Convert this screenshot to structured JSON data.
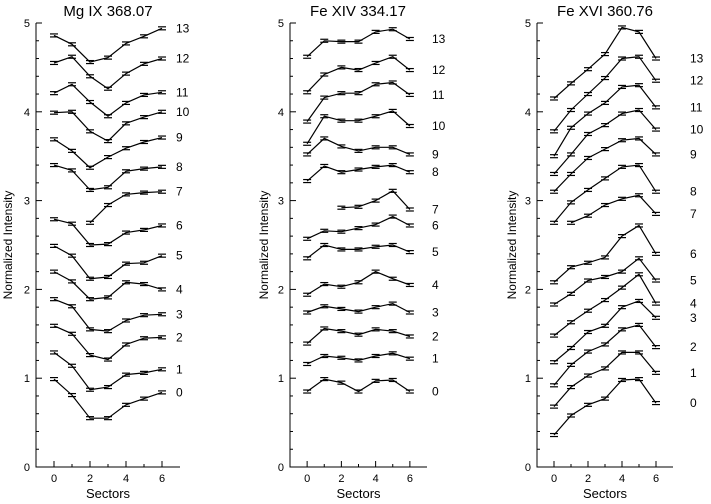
{
  "chart_data": [
    {
      "type": "line",
      "title": "Mg IX 368.07",
      "xlabel": "Sectors",
      "ylabel": "Normalized Intensity",
      "xlim": [
        -1,
        7
      ],
      "ylim": [
        0,
        5
      ],
      "xticks": [
        0,
        2,
        4,
        6
      ],
      "yticks": [
        0,
        1,
        2,
        3,
        4,
        5
      ],
      "grid": false,
      "series": [
        {
          "name": "0",
          "x": [
            0,
            1,
            2,
            3,
            4,
            5,
            6
          ],
          "y": [
            0.99,
            0.81,
            0.55,
            0.55,
            0.7,
            0.77,
            0.84
          ]
        },
        {
          "name": "1",
          "x": [
            0,
            1,
            2,
            3,
            4,
            5,
            6
          ],
          "y": [
            1.29,
            1.14,
            0.87,
            0.9,
            1.04,
            1.06,
            1.1
          ]
        },
        {
          "name": "2",
          "x": [
            0,
            1,
            2,
            3,
            4,
            5,
            6
          ],
          "y": [
            1.59,
            1.5,
            1.26,
            1.21,
            1.38,
            1.45,
            1.46
          ]
        },
        {
          "name": "3",
          "x": [
            0,
            1,
            2,
            3,
            4,
            5,
            6
          ],
          "y": [
            1.89,
            1.81,
            1.55,
            1.53,
            1.65,
            1.71,
            1.72
          ]
        },
        {
          "name": "4",
          "x": [
            0,
            1,
            2,
            3,
            4,
            5,
            6
          ],
          "y": [
            2.2,
            2.09,
            1.89,
            1.91,
            2.08,
            2.06,
            2.0
          ]
        },
        {
          "name": "5",
          "x": [
            0,
            1,
            2,
            3,
            4,
            5,
            6
          ],
          "y": [
            2.49,
            2.38,
            2.12,
            2.14,
            2.29,
            2.3,
            2.38
          ]
        },
        {
          "name": "6",
          "x": [
            0,
            1,
            2,
            3,
            4,
            5,
            6
          ],
          "y": [
            2.79,
            2.74,
            2.5,
            2.51,
            2.64,
            2.67,
            2.72
          ]
        },
        {
          "name": "7",
          "x": [
            2,
            3,
            4,
            5,
            6
          ],
          "y": [
            2.75,
            2.95,
            3.07,
            3.09,
            3.1
          ]
        },
        {
          "name": "8",
          "x": [
            0,
            1,
            2,
            3,
            4,
            5,
            6
          ],
          "y": [
            3.4,
            3.34,
            3.12,
            3.15,
            3.33,
            3.36,
            3.38
          ]
        },
        {
          "name": "9",
          "x": [
            0,
            1,
            2,
            3,
            4,
            5,
            6
          ],
          "y": [
            3.69,
            3.56,
            3.37,
            3.49,
            3.59,
            3.66,
            3.71
          ]
        },
        {
          "name": "10",
          "x": [
            0,
            1,
            2,
            3,
            4,
            5,
            6
          ],
          "y": [
            3.99,
            4.0,
            3.78,
            3.67,
            3.87,
            3.94,
            4.0
          ]
        },
        {
          "name": "11",
          "x": [
            0,
            1,
            2,
            3,
            4,
            5,
            6
          ],
          "y": [
            4.21,
            4.31,
            4.11,
            3.95,
            4.1,
            4.19,
            4.22
          ]
        },
        {
          "name": "12",
          "x": [
            0,
            1,
            2,
            3,
            4,
            5,
            6
          ],
          "y": [
            4.55,
            4.62,
            4.4,
            4.26,
            4.43,
            4.54,
            4.6
          ]
        },
        {
          "name": "13",
          "x": [
            0,
            1,
            2,
            3,
            4,
            5,
            6
          ],
          "y": [
            4.86,
            4.76,
            4.56,
            4.61,
            4.77,
            4.85,
            4.94
          ]
        }
      ]
    },
    {
      "type": "line",
      "title": "Fe XIV 334.17",
      "xlabel": "Sectors",
      "ylabel": "Normalized Intensity",
      "xlim": [
        -1,
        7
      ],
      "ylim": [
        0,
        5
      ],
      "xticks": [
        0,
        2,
        4,
        6
      ],
      "yticks": [
        0,
        1,
        2,
        3,
        4,
        5
      ],
      "grid": false,
      "series": [
        {
          "name": "0",
          "x": [
            0,
            1,
            2,
            3,
            4,
            5,
            6
          ],
          "y": [
            0.85,
            0.99,
            0.95,
            0.85,
            0.97,
            0.98,
            0.85
          ]
        },
        {
          "name": "1",
          "x": [
            0,
            1,
            2,
            3,
            4,
            5,
            6
          ],
          "y": [
            1.16,
            1.25,
            1.23,
            1.2,
            1.25,
            1.28,
            1.22
          ]
        },
        {
          "name": "2",
          "x": [
            0,
            1,
            2,
            3,
            4,
            5,
            6
          ],
          "y": [
            1.39,
            1.56,
            1.53,
            1.49,
            1.55,
            1.53,
            1.47
          ]
        },
        {
          "name": "3",
          "x": [
            0,
            1,
            2,
            3,
            4,
            5,
            6
          ],
          "y": [
            1.74,
            1.81,
            1.78,
            1.75,
            1.8,
            1.84,
            1.74
          ]
        },
        {
          "name": "4",
          "x": [
            0,
            1,
            2,
            3,
            4,
            5,
            6
          ],
          "y": [
            1.94,
            2.06,
            2.03,
            2.08,
            2.2,
            2.12,
            2.05
          ]
        },
        {
          "name": "5",
          "x": [
            0,
            1,
            2,
            3,
            4,
            5,
            6
          ],
          "y": [
            2.35,
            2.5,
            2.45,
            2.45,
            2.48,
            2.5,
            2.42
          ]
        },
        {
          "name": "6",
          "x": [
            0,
            1,
            2,
            3,
            4,
            5,
            6
          ],
          "y": [
            2.57,
            2.66,
            2.65,
            2.69,
            2.73,
            2.82,
            2.72
          ]
        },
        {
          "name": "7",
          "x": [
            2,
            3,
            4,
            5,
            6
          ],
          "y": [
            2.92,
            2.93,
            3.0,
            3.11,
            2.9
          ]
        },
        {
          "name": "8",
          "x": [
            0,
            1,
            2,
            3,
            4,
            5,
            6
          ],
          "y": [
            3.22,
            3.39,
            3.32,
            3.35,
            3.38,
            3.4,
            3.32
          ]
        },
        {
          "name": "9",
          "x": [
            0,
            1,
            2,
            3,
            4,
            5,
            6
          ],
          "y": [
            3.52,
            3.7,
            3.61,
            3.56,
            3.6,
            3.6,
            3.52
          ]
        },
        {
          "name": "10",
          "x": [
            0,
            1,
            2,
            3,
            4,
            5,
            6
          ],
          "y": [
            3.64,
            3.95,
            3.9,
            3.9,
            3.95,
            4.01,
            3.84
          ]
        },
        {
          "name": "11",
          "x": [
            0,
            1,
            2,
            3,
            4,
            5,
            6
          ],
          "y": [
            3.89,
            4.16,
            4.21,
            4.21,
            4.31,
            4.33,
            4.19
          ]
        },
        {
          "name": "12",
          "x": [
            0,
            1,
            2,
            3,
            4,
            5,
            6
          ],
          "y": [
            4.22,
            4.42,
            4.5,
            4.47,
            4.55,
            4.62,
            4.47
          ]
        },
        {
          "name": "13",
          "x": [
            0,
            1,
            2,
            3,
            4,
            5,
            6
          ],
          "y": [
            4.62,
            4.8,
            4.79,
            4.79,
            4.9,
            4.93,
            4.82
          ]
        }
      ]
    },
    {
      "type": "line",
      "title": "Fe XVI 360.76",
      "xlabel": "Sectors",
      "ylabel": "Normalized Intensity",
      "xlim": [
        -1,
        7
      ],
      "ylim": [
        0,
        5
      ],
      "xticks": [
        0,
        2,
        4,
        6
      ],
      "yticks": [
        0,
        1,
        2,
        3,
        4,
        5
      ],
      "grid": false,
      "series": [
        {
          "name": "0",
          "x": [
            0,
            1,
            2,
            3,
            4,
            5,
            6
          ],
          "y": [
            0.36,
            0.58,
            0.7,
            0.77,
            0.98,
            0.99,
            0.72
          ]
        },
        {
          "name": "1",
          "x": [
            0,
            1,
            2,
            3,
            4,
            5,
            6
          ],
          "y": [
            0.68,
            0.9,
            1.03,
            1.11,
            1.29,
            1.29,
            1.06
          ]
        },
        {
          "name": "2",
          "x": [
            0,
            1,
            2,
            3,
            4,
            5,
            6
          ],
          "y": [
            0.92,
            1.15,
            1.3,
            1.38,
            1.55,
            1.6,
            1.35
          ]
        },
        {
          "name": "3",
          "x": [
            0,
            1,
            2,
            3,
            4,
            5,
            6
          ],
          "y": [
            1.18,
            1.34,
            1.52,
            1.59,
            1.8,
            1.87,
            1.68
          ]
        },
        {
          "name": "4",
          "x": [
            0,
            1,
            2,
            3,
            4,
            5,
            6
          ],
          "y": [
            1.48,
            1.63,
            1.76,
            1.88,
            2.02,
            2.17,
            1.84
          ]
        },
        {
          "name": "5",
          "x": [
            0,
            1,
            2,
            3,
            4,
            5,
            6
          ],
          "y": [
            1.83,
            1.95,
            2.1,
            2.14,
            2.2,
            2.35,
            2.1
          ]
        },
        {
          "name": "6",
          "x": [
            0,
            1,
            2,
            3,
            4,
            5,
            6
          ],
          "y": [
            2.08,
            2.25,
            2.3,
            2.36,
            2.6,
            2.72,
            2.4
          ]
        },
        {
          "name": "7",
          "x": [
            1,
            2,
            3,
            4,
            5,
            6
          ],
          "y": [
            2.75,
            2.83,
            2.95,
            3.02,
            3.06,
            2.85
          ]
        },
        {
          "name": "8",
          "x": [
            0,
            1,
            2,
            3,
            4,
            5,
            6
          ],
          "y": [
            2.75,
            2.98,
            3.12,
            3.25,
            3.38,
            3.4,
            3.1
          ]
        },
        {
          "name": "9",
          "x": [
            0,
            1,
            2,
            3,
            4,
            5,
            6
          ],
          "y": [
            3.1,
            3.3,
            3.48,
            3.58,
            3.68,
            3.7,
            3.52
          ]
        },
        {
          "name": "10",
          "x": [
            0,
            1,
            2,
            3,
            4,
            5,
            6
          ],
          "y": [
            3.3,
            3.52,
            3.75,
            3.85,
            3.98,
            4.02,
            3.8
          ]
        },
        {
          "name": "11",
          "x": [
            0,
            1,
            2,
            3,
            4,
            5,
            6
          ],
          "y": [
            3.5,
            3.82,
            3.98,
            4.1,
            4.28,
            4.3,
            4.05
          ]
        },
        {
          "name": "12",
          "x": [
            0,
            1,
            2,
            3,
            4,
            5,
            6
          ],
          "y": [
            3.78,
            4.02,
            4.2,
            4.38,
            4.6,
            4.62,
            4.35
          ]
        },
        {
          "name": "13",
          "x": [
            0,
            1,
            2,
            3,
            4,
            5,
            6
          ],
          "y": [
            4.15,
            4.32,
            4.48,
            4.65,
            4.95,
            4.9,
            4.6
          ]
        }
      ]
    }
  ]
}
